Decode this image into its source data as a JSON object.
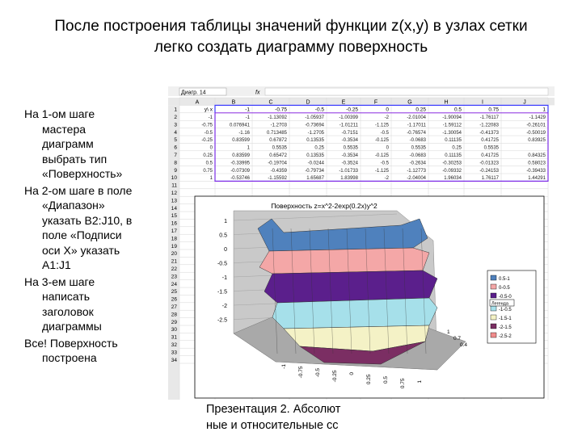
{
  "slide": {
    "title_line1": "После построения таблицы значений функции z(x,y) в узлах сетки",
    "title_line2": "легко создать диаграмму поверхность",
    "bullets": [
      {
        "first": "На 1-ом шаге",
        "rest": [
          "мастера",
          "диаграмм",
          "выбрать тип",
          "«Поверхность»"
        ]
      },
      {
        "first": "На 2-ом шаге в поле",
        "rest": [
          "«Диапазон»",
          "указать В2:J10, в",
          "поле «Подписи",
          "оси Х» указать",
          "А1:J1"
        ]
      },
      {
        "first": "На 3-ем шаге",
        "rest": [
          "написать",
          "заголовок",
          "диаграммы"
        ]
      },
      {
        "first": "Все! Поверхность",
        "rest": [
          "построена"
        ]
      }
    ],
    "footer_line1": "Презентация 2. Абсолют",
    "footer_line2": "ные и относительные сс"
  },
  "spreadsheet": {
    "name_box": "Диагр. 14",
    "fx": "fx",
    "columns": [
      "A",
      "B",
      "C",
      "D",
      "E",
      "F",
      "G",
      "H",
      "I",
      "J"
    ],
    "row_numbers": [
      "1",
      "2",
      "3",
      "4",
      "5",
      "6",
      "7",
      "8",
      "9",
      "10",
      "11",
      "12",
      "13",
      "14",
      "15",
      "16",
      "17",
      "18",
      "19",
      "20",
      "21",
      "22",
      "23",
      "24",
      "25",
      "26",
      "27",
      "28",
      "29",
      "30",
      "31",
      "32",
      "33",
      "34"
    ],
    "header_row": [
      "y\\ x",
      "-1",
      "-0.75",
      "-0.5",
      "-0.25",
      "0",
      "0.25",
      "0.5",
      "0.75",
      "1"
    ],
    "rows": [
      [
        "-1",
        "-1",
        "-1.13092",
        "-1.05937",
        "-1.00399",
        "-2",
        "-2.01004",
        "-1.90094",
        "-1.76117",
        "-1.1429"
      ],
      [
        "-0.75",
        "0.076941",
        "-1.2703",
        "-0.73694",
        "-1.01211",
        "-1.125",
        "-1.17011",
        "-1.59112",
        "-1.22083",
        "-0.26101"
      ],
      [
        "-0.5",
        "-1.16",
        "0.713485",
        "-1.2705",
        "-0.7151",
        "-0.5",
        "-0.76574",
        "-1.30054",
        "-0.41373",
        "-0.50019"
      ],
      [
        "-0.25",
        "0.83599",
        "0.67872",
        "0.13535",
        "-0.3534",
        "-0.125",
        "-0.0683",
        "0.11135",
        "0.41725",
        "0.83925"
      ],
      [
        "0",
        "1",
        "0.5535",
        "0.25",
        "0.5535",
        "0",
        "0.5535",
        "0.25",
        "0.5535",
        ""
      ],
      [
        "0.25",
        "0.83599",
        "0.65472",
        "0.13535",
        "-0.3534",
        "-0.125",
        "-0.0683",
        "0.11135",
        "0.41725",
        "0.84325"
      ],
      [
        "0.5",
        "-0.33995",
        "-0.19704",
        "-0.0244",
        "-0.3524",
        "-0.5",
        "-0.2634",
        "-0.30253",
        "-0.01323",
        "0.58023"
      ],
      [
        "0.75",
        "-0.07309",
        "-0.4359",
        "-0.79734",
        "-1.01733",
        "-1.125",
        "-1.12773",
        "-0.09332",
        "-0.24153",
        "-0.39433"
      ],
      [
        "1",
        "-0.53746",
        "-1.15592",
        "1.65687",
        "1.83998",
        "-2",
        "-2.04004",
        "1.96034",
        "1.76117",
        "1.44291"
      ]
    ]
  },
  "chart_data": {
    "type": "surface",
    "title": "Поверхность z=x^2-2exp(0.2x)y^2",
    "z_ticks": [
      "1",
      "0.5",
      "0",
      "-0.5",
      "-1",
      "-1.5",
      "-2",
      "-2.5"
    ],
    "x_labels": [
      "-1",
      "-0.75",
      "-0.5",
      "-0.25",
      "0",
      "0.25",
      "0.5",
      "0.75",
      "1"
    ],
    "y_labels": [
      "1",
      "0.7",
      "0.4"
    ],
    "legend": [
      {
        "label": "0.5-1",
        "color": "#4f81bd"
      },
      {
        "label": "0-0.5",
        "color": "#f4a7a7"
      },
      {
        "label": "-0.5-0",
        "color": "#5b1f8c"
      },
      {
        "label": "-1-0.5",
        "color": "#a6e0ea"
      },
      {
        "label": "-1.5-1",
        "color": "#f4f2c6"
      },
      {
        "label": "-2-1.5",
        "color": "#7b2e63"
      },
      {
        "label": "-2.5-2",
        "color": "#f08c8c"
      }
    ],
    "legend_header": "Легенда",
    "legend_values_partial": [
      "0.5-1",
      "0-0.5",
      "-0.5-0",
      "-1-0.5",
      "-1.5-1",
      "-2-1.5",
      "-2.5-2"
    ]
  }
}
